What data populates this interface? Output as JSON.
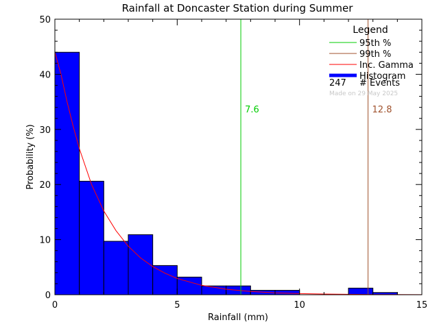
{
  "chart_data": {
    "type": "bar",
    "title": "Rainfall at Doncaster Station during Summer",
    "xlabel": "Rainfall (mm)",
    "ylabel": "Probability (%)",
    "xlim": [
      0,
      15
    ],
    "ylim": [
      0,
      50
    ],
    "x_ticks": [
      0,
      5,
      10,
      15
    ],
    "x_tick_labels": [
      "0",
      "5",
      "10",
      "15"
    ],
    "y_ticks": [
      0,
      10,
      20,
      30,
      40,
      50
    ],
    "y_tick_labels": [
      "0",
      "10",
      "20",
      "30",
      "40",
      "50"
    ],
    "grid": false,
    "legend_position": "top-right",
    "histogram": {
      "name": "Histogram",
      "color": "#0000ff",
      "bin_width": 1,
      "bins": [
        {
          "x0": 0,
          "x1": 1,
          "value": 44.0
        },
        {
          "x0": 1,
          "x1": 2,
          "value": 20.6
        },
        {
          "x0": 2,
          "x1": 3,
          "value": 9.7
        },
        {
          "x0": 3,
          "x1": 4,
          "value": 10.9
        },
        {
          "x0": 4,
          "x1": 5,
          "value": 5.3
        },
        {
          "x0": 5,
          "x1": 6,
          "value": 3.2
        },
        {
          "x0": 6,
          "x1": 7,
          "value": 1.6
        },
        {
          "x0": 7,
          "x1": 8,
          "value": 1.6
        },
        {
          "x0": 8,
          "x1": 9,
          "value": 0.8
        },
        {
          "x0": 9,
          "x1": 10,
          "value": 0.8
        },
        {
          "x0": 10,
          "x1": 11,
          "value": 0.0
        },
        {
          "x0": 11,
          "x1": 12,
          "value": 0.0
        },
        {
          "x0": 12,
          "x1": 13,
          "value": 1.2
        },
        {
          "x0": 13,
          "x1": 14,
          "value": 0.4
        },
        {
          "x0": 14,
          "x1": 15,
          "value": 0.0
        }
      ]
    },
    "gamma_curve": {
      "name": "Inc. Gamma",
      "color": "#ff0000",
      "x": [
        0,
        0.25,
        0.5,
        0.75,
        1,
        1.5,
        2,
        2.5,
        3,
        3.5,
        4,
        4.5,
        5,
        6,
        7,
        8,
        9,
        10,
        11,
        12,
        13,
        14,
        15
      ],
      "y": [
        44.0,
        40.0,
        35.0,
        30.5,
        26.5,
        20.0,
        15.2,
        11.6,
        8.8,
        6.7,
        5.1,
        3.9,
        2.95,
        1.7,
        1.0,
        0.6,
        0.35,
        0.2,
        0.12,
        0.07,
        0.04,
        0.02,
        0.01
      ]
    },
    "markers": [
      {
        "name": "95th %",
        "value": 7.6,
        "label": "7.6",
        "color": "#00cc00"
      },
      {
        "name": "99th %",
        "value": 12.8,
        "label": "12.8",
        "color": "#a0522d"
      }
    ]
  },
  "legend": {
    "title": "Legend",
    "entries": [
      {
        "label": "95th %",
        "color": "#00cc00",
        "thick": false
      },
      {
        "label": "99th %",
        "color": "#a0522d",
        "thick": false
      },
      {
        "label": "Inc. Gamma",
        "color": "#ff0000",
        "thick": false
      },
      {
        "label": "Histogram",
        "color": "#0000ff",
        "thick": true
      }
    ],
    "events_count": "247",
    "events_label": "# Events",
    "made_on": "Made on 29 May 2025"
  }
}
